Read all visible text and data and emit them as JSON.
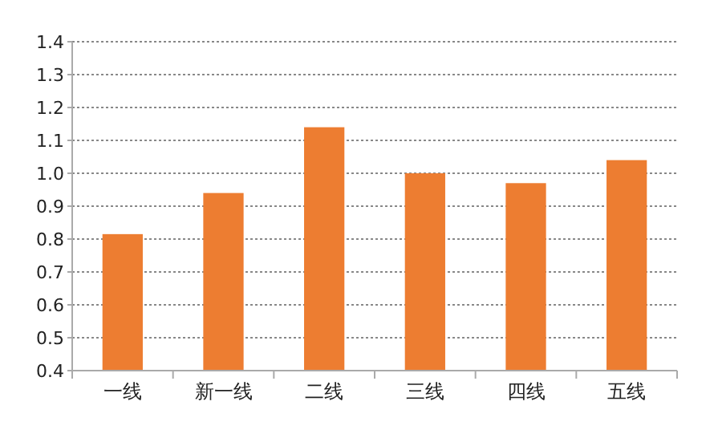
{
  "chart_data": {
    "type": "bar",
    "categories": [
      "一线",
      "新一线",
      "二线",
      "三线",
      "四线",
      "五线"
    ],
    "values": [
      0.815,
      0.94,
      1.14,
      1.0,
      0.97,
      1.04
    ],
    "color": "#ed7d31",
    "ylim": [
      0.4,
      1.4
    ],
    "yticks": [
      {
        "value": 0.4,
        "label": "0.4"
      },
      {
        "value": 0.5,
        "label": "0.5"
      },
      {
        "value": 0.6,
        "label": "0.6"
      },
      {
        "value": 0.7,
        "label": "0.7"
      },
      {
        "value": 0.8,
        "label": "0.8"
      },
      {
        "value": 0.9,
        "label": "0.9"
      },
      {
        "value": 1.0,
        "label": "1.0"
      },
      {
        "value": 1.1,
        "label": "1.1"
      },
      {
        "value": 1.2,
        "label": "1.2"
      },
      {
        "value": 1.3,
        "label": "1.3"
      },
      {
        "value": 1.4,
        "label": "1.4"
      }
    ],
    "grid": "y"
  }
}
